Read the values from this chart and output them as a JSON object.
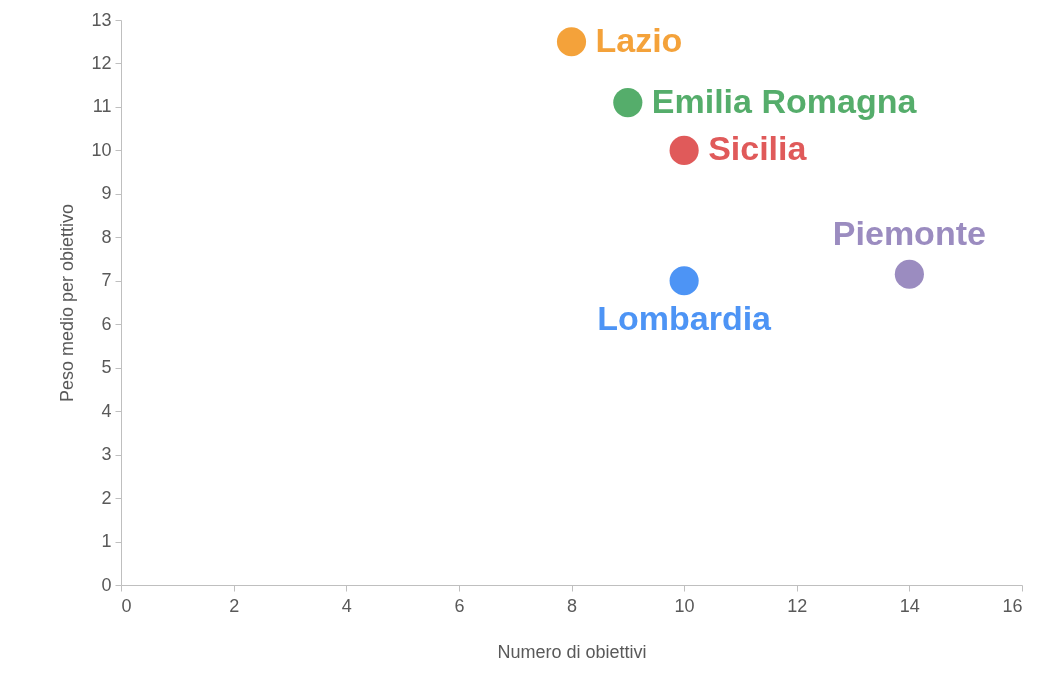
{
  "chart_data": {
    "type": "scatter",
    "xlabel": "Numero di obiettivi",
    "ylabel": "Peso medio per obiettivo",
    "xlim": [
      0,
      16
    ],
    "xticks": [
      0,
      2,
      4,
      6,
      8,
      10,
      12,
      14,
      16
    ],
    "ylim": [
      0,
      13
    ],
    "yticks": [
      0,
      1,
      2,
      3,
      4,
      5,
      6,
      7,
      8,
      9,
      10,
      11,
      12,
      13
    ],
    "grid": false,
    "legend": false,
    "marker": "circle",
    "series": [
      {
        "name": "Lazio",
        "color": "#f4a23a",
        "x": [
          8
        ],
        "values": [
          12.5
        ]
      },
      {
        "name": "Emilia Romagna",
        "color": "#55ad6b",
        "x": [
          9
        ],
        "values": [
          11.1
        ]
      },
      {
        "name": "Sicilia",
        "color": "#e05a5a",
        "x": [
          10
        ],
        "values": [
          10
        ]
      },
      {
        "name": "Piemonte",
        "color": "#9b8cc0",
        "x": [
          14
        ],
        "values": [
          7.15
        ]
      },
      {
        "name": "Lombardia",
        "color": "#4d94f5",
        "x": [
          10
        ],
        "values": [
          7
        ]
      }
    ]
  }
}
